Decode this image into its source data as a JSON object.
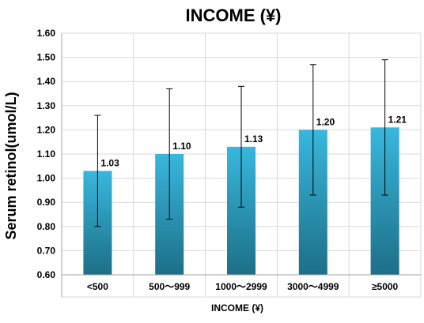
{
  "chart_data": {
    "type": "bar",
    "title": "INCOME (¥)",
    "xlabel": "INCOME (¥)",
    "ylabel": "Serum retinol(umol/L)",
    "categories": [
      "<500",
      "500～999",
      "1000～2999",
      "3000～4999",
      "≥5000"
    ],
    "values": [
      1.03,
      1.1,
      1.13,
      1.2,
      1.21
    ],
    "value_labels": [
      "1.03",
      "1.10",
      "1.13",
      "1.20",
      "1.21"
    ],
    "error_high": [
      1.26,
      1.37,
      1.38,
      1.47,
      1.49
    ],
    "error_low": [
      0.8,
      0.83,
      0.88,
      0.93,
      0.93
    ],
    "ylim": [
      0.6,
      1.6
    ],
    "yticks": [
      "0.60",
      "0.70",
      "0.80",
      "0.90",
      "1.00",
      "1.10",
      "1.20",
      "1.30",
      "1.40",
      "1.50",
      "1.60"
    ],
    "grid": true,
    "colors": {
      "bar_top": "#38b7dd",
      "bar_bottom": "#1d6f87",
      "grid": "#d9d9d9",
      "axis": "#a6a6a6",
      "text": "#000000"
    }
  }
}
